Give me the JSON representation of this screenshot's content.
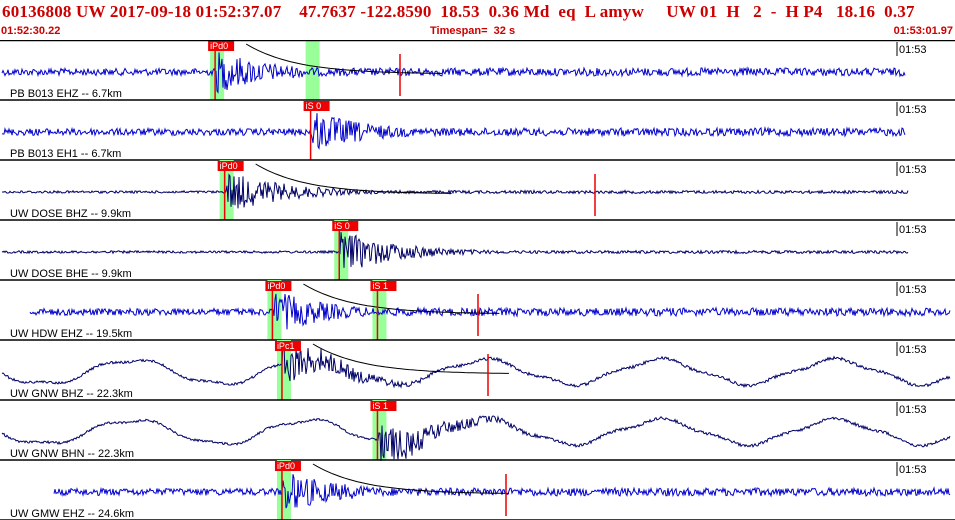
{
  "header": {
    "event_line": "60136808 UW 2017-09-18 01:52:37.07    47.7637 -122.8590  18.53  0.36 Md  eq  L amyw     UW 01  H   2  -  H P4   18.16  0.37",
    "start_time": "01:52:30.22",
    "timespan": "Timespan=  32 s",
    "end_time": "01:53:01.97"
  },
  "colors": {
    "header_text": "#cc0000",
    "trace_blue": "#0000cc",
    "trace_navy": "#000066",
    "pick_flag": "#ee0000",
    "pick_window": "#99ff99",
    "coda_fit": "#000000"
  },
  "traces": [
    {
      "label": "PB B013 EHZ -- 6.7km",
      "time": "01:53",
      "color": "#0000cc",
      "style": "blue",
      "picks": [
        {
          "flag": "iPd0",
          "t": 0.22,
          "window": true
        },
        {
          "flag": "",
          "t": 0.32,
          "window": true
        }
      ]
    },
    {
      "label": "PB B013 EH1 -- 6.7km",
      "time": "01:53",
      "color": "#0000cc",
      "style": "blue",
      "picks": [
        {
          "flag": "iS 0",
          "t": 0.32,
          "window": false
        }
      ]
    },
    {
      "label": "UW DOSE BHZ -- 9.9km",
      "time": "01:53",
      "color": "#000066",
      "style": "navy",
      "picks": [
        {
          "flag": "iPd0",
          "t": 0.23,
          "window": true
        }
      ]
    },
    {
      "label": "UW DOSE BHE -- 9.9km",
      "time": "01:53",
      "color": "#000066",
      "style": "navy",
      "picks": [
        {
          "flag": "iS 0",
          "t": 0.35,
          "window": true
        }
      ]
    },
    {
      "label": "UW HDW EHZ -- 19.5km",
      "time": "01:53",
      "color": "#0000cc",
      "style": "blue",
      "picks": [
        {
          "flag": "iPd0",
          "t": 0.28,
          "window": true
        },
        {
          "flag": "iS 1",
          "t": 0.39,
          "window": true
        }
      ]
    },
    {
      "label": "UW GNW BHZ -- 22.3km",
      "time": "01:53",
      "color": "#000066",
      "style": "navy",
      "picks": [
        {
          "flag": "iPc1",
          "t": 0.29,
          "window": true
        }
      ]
    },
    {
      "label": "UW GNW BHN -- 22.3km",
      "time": "01:53",
      "color": "#000066",
      "style": "navy",
      "picks": [
        {
          "flag": "iS 1",
          "t": 0.39,
          "window": true
        }
      ]
    },
    {
      "label": "UW GMW EHZ -- 24.6km",
      "time": "01:53",
      "color": "#0000cc",
      "style": "blue",
      "picks": [
        {
          "flag": "iPd0",
          "t": 0.29,
          "window": true
        }
      ]
    }
  ]
}
